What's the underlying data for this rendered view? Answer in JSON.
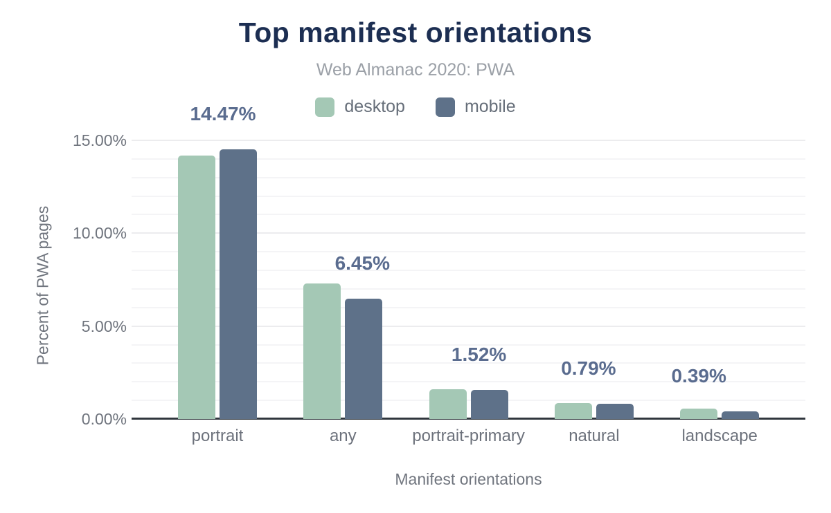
{
  "chart_data": {
    "type": "bar",
    "title": "Top manifest orientations",
    "subtitle": "Web Almanac 2020: PWA",
    "xlabel": "Manifest orientations",
    "ylabel": "Percent of PWA pages",
    "categories": [
      "portrait",
      "any",
      "portrait-primary",
      "natural",
      "landscape"
    ],
    "series": [
      {
        "name": "desktop",
        "color": "#a4c8b5",
        "values": [
          14.16,
          7.25,
          1.57,
          0.82,
          0.52
        ]
      },
      {
        "name": "mobile",
        "color": "#5e7189",
        "values": [
          14.47,
          6.45,
          1.52,
          0.79,
          0.39
        ]
      }
    ],
    "bar_labels": [
      "14.47%",
      "6.45%",
      "1.52%",
      "0.79%",
      "0.39%"
    ],
    "yticks": [
      {
        "value": 0,
        "label": "0.00%"
      },
      {
        "value": 5,
        "label": "5.00%"
      },
      {
        "value": 10,
        "label": "10.00%"
      },
      {
        "value": 15,
        "label": "15.00%"
      }
    ],
    "ylim": [
      0,
      15
    ],
    "grid": true,
    "minor_grid_step_pct": 1,
    "legend_position": "top"
  },
  "colors": {
    "background": "#ffffff",
    "title": "#1c2e52",
    "subtitle": "#9ba0a7",
    "axis_text": "#70757e",
    "category_text": "#6d727c",
    "bar_label": "#5a6c8f",
    "axis_line": "#30363d",
    "gridline_minor": "#f4f4f6",
    "gridline_major": "#ececee",
    "desktop": "#a4c8b5",
    "mobile": "#5e7189"
  }
}
